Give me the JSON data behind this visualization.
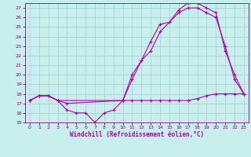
{
  "bg_color": "#c8eeee",
  "grid_color": "#a8d4d4",
  "line_color": "#aa00aa",
  "xlabel": "Windchill (Refroidissement éolien,°C)",
  "xlim": [
    -0.5,
    23.5
  ],
  "ylim": [
    15,
    27.5
  ],
  "yticks": [
    15,
    16,
    17,
    18,
    19,
    20,
    21,
    22,
    23,
    24,
    25,
    26,
    27
  ],
  "xticks": [
    0,
    1,
    2,
    3,
    4,
    5,
    6,
    7,
    8,
    9,
    10,
    11,
    12,
    13,
    14,
    15,
    16,
    17,
    18,
    19,
    20,
    21,
    22,
    23
  ],
  "line1_x": [
    0,
    1,
    2,
    3,
    4,
    5,
    6,
    7,
    8,
    9,
    10,
    11,
    12,
    13,
    14,
    15,
    16,
    17,
    18,
    19,
    20,
    21,
    22,
    23
  ],
  "line1_y": [
    17.3,
    17.8,
    17.8,
    17.3,
    16.3,
    16.0,
    16.0,
    15.0,
    16.0,
    16.3,
    17.3,
    17.3,
    17.3,
    17.3,
    17.3,
    17.3,
    17.3,
    17.3,
    17.5,
    17.8,
    18.0,
    18.0,
    18.0,
    18.0
  ],
  "line2_x": [
    0,
    1,
    2,
    3,
    4,
    10,
    11,
    12,
    13,
    14,
    15,
    16,
    17,
    18,
    19,
    20,
    21,
    22,
    23
  ],
  "line2_y": [
    17.3,
    17.8,
    17.8,
    17.3,
    17.0,
    17.3,
    19.5,
    21.5,
    23.5,
    25.3,
    25.5,
    26.5,
    27.0,
    27.0,
    26.5,
    26.0,
    23.0,
    19.5,
    18.0
  ],
  "line3_x": [
    0,
    1,
    2,
    3,
    10,
    11,
    12,
    13,
    14,
    15,
    16,
    17,
    18,
    19,
    20,
    21,
    22,
    23
  ],
  "line3_y": [
    17.3,
    17.8,
    17.8,
    17.3,
    17.3,
    20.0,
    21.5,
    22.5,
    24.5,
    25.5,
    26.8,
    27.5,
    27.5,
    27.0,
    26.5,
    22.5,
    20.0,
    18.0
  ]
}
